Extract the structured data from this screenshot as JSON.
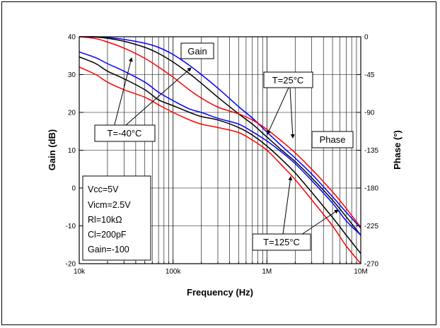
{
  "chart_data": {
    "type": "line",
    "xlabel": "Frequency (Hz)",
    "ylabel": "Gain (dB)",
    "y2label": "Phase (°)",
    "x_scale": "log",
    "xlim": [
      10000,
      10000000
    ],
    "ylim": [
      -20,
      40
    ],
    "y2lim": [
      -270,
      0
    ],
    "grid": true,
    "x_ticks": [
      "10k",
      "100k",
      "1M",
      "10M"
    ],
    "y_ticks": [
      "40",
      "30",
      "20",
      "10",
      "0",
      "-10",
      "-20"
    ],
    "y2_ticks": [
      "0",
      "-45",
      "-90",
      "-135",
      "-180",
      "-225",
      "-270"
    ],
    "x": [
      10000,
      15000,
      20000,
      30000,
      50000,
      70000,
      100000,
      150000,
      200000,
      300000,
      500000,
      700000,
      1000000,
      1500000,
      2000000,
      3000000,
      5000000,
      7000000,
      10000000
    ],
    "series": [
      {
        "color": "#0000ff",
        "axis": "gain",
        "values": [
          40.0,
          40.0,
          39.8,
          39.3,
          38.3,
          37.2,
          35.3,
          32.4,
          30.0,
          26.4,
          21.5,
          18.5,
          14.8,
          10.7,
          7.9,
          3.7,
          -2.3,
          -6.4,
          -10.6
        ]
      },
      {
        "color": "#000000",
        "axis": "gain",
        "values": [
          40.0,
          39.9,
          39.6,
          38.8,
          37.2,
          35.6,
          33.3,
          30.2,
          27.7,
          24.0,
          19.6,
          16.9,
          13.5,
          9.6,
          7.0,
          2.7,
          -3.2,
          -7.6,
          -12.5
        ]
      },
      {
        "color": "#ff0000",
        "axis": "gain",
        "values": [
          40.0,
          39.5,
          38.6,
          37.0,
          34.3,
          32.0,
          29.3,
          25.9,
          23.8,
          21.4,
          19.6,
          18.0,
          15.5,
          12.0,
          9.3,
          5.0,
          -1.0,
          -5.4,
          -10.4
        ]
      },
      {
        "color": "#ff0000",
        "axis": "phase",
        "values": [
          -36,
          -45,
          -54,
          -63,
          -72,
          -81,
          -90,
          -99,
          -104,
          -108,
          -114,
          -123,
          -135,
          -155,
          -170,
          -194,
          -225,
          -249,
          -270
        ]
      },
      {
        "color": "#000000",
        "axis": "phase",
        "values": [
          -24,
          -32,
          -41,
          -50,
          -63,
          -75,
          -82,
          -90,
          -95,
          -99,
          -108,
          -117,
          -130,
          -148,
          -162,
          -185,
          -215,
          -236,
          -258
        ]
      },
      {
        "color": "#0000ff",
        "axis": "phase",
        "values": [
          -18,
          -25,
          -32,
          -41,
          -54,
          -66,
          -76,
          -86,
          -90,
          -97,
          -104,
          -113,
          -124,
          -139,
          -151,
          -171,
          -198,
          -219,
          -236
        ]
      }
    ],
    "annotations": [
      "Gain",
      "Phase",
      "T=-40°C",
      "T=25°C",
      "T=125°C"
    ],
    "conditions": [
      "Vcc=5V",
      "Vicm=2.5V",
      "Rl=10kΩ",
      "Cl=200pF",
      "Gain=-100"
    ]
  }
}
